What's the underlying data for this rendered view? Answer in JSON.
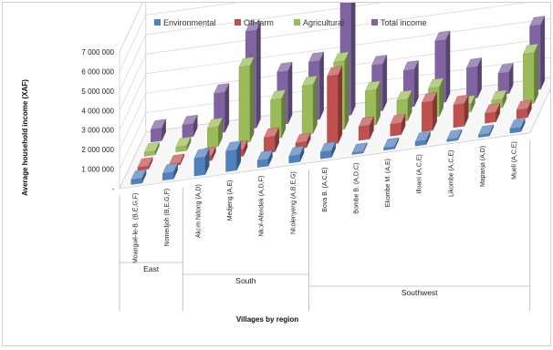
{
  "chart_data": {
    "type": "bar",
    "subtype": "3d-clustered-column",
    "title": "",
    "ylabel": "Average household income (XAF)",
    "xlabel": "Villages by region",
    "ylim": [
      0,
      7000000
    ],
    "yticks": [
      "7 000 000",
      "6 000 000",
      "5 000 000",
      "4 000 000",
      "3 000 000",
      "2 000 000",
      "1 000 000",
      "-"
    ],
    "ytick_values": [
      7000000,
      6000000,
      5000000,
      4000000,
      3000000,
      2000000,
      1000000,
      0
    ],
    "legend_position": "top",
    "grid": true,
    "categories": [
      "Moangué-le-B. (B,E,G,F)",
      "Nomedjoh (B,E,G,F)",
      "Akom Ndong (A,D)",
      "Medjeng (A,E)",
      "Nkol-Afendek (A,D,F)",
      "Nkolenyeng (A,B,E,G)",
      "Bova B. (A,C,E)",
      "Bombe B. (A,D,C)",
      "Ekombe M. (A,E)",
      "Illoani (A,C,E)",
      "Likombe (A,C,E)",
      "Mapanja (A,D)",
      "Mueli (A,C,E)"
    ],
    "regions": [
      {
        "name": "East",
        "start": 0,
        "end": 1
      },
      {
        "name": "South",
        "start": 2,
        "end": 5
      },
      {
        "name": "Southwest",
        "start": 6,
        "end": 12
      }
    ],
    "series": [
      {
        "name": "Environmental",
        "color": "#4F81BD",
        "values": [
          250000,
          350000,
          900000,
          1050000,
          350000,
          350000,
          350000,
          80000,
          120000,
          220000,
          100000,
          120000,
          220000
        ]
      },
      {
        "name": "Off-farm",
        "color": "#C0504D",
        "values": [
          150000,
          100000,
          250000,
          350000,
          800000,
          300000,
          3500000,
          700000,
          600000,
          1500000,
          1150000,
          500000,
          450000
        ]
      },
      {
        "name": "Agricultural",
        "color": "#9BBB59",
        "values": [
          200000,
          250000,
          1000000,
          3900000,
          2000000,
          2500000,
          3500000,
          1800000,
          1100000,
          1500000,
          400000,
          450000,
          2600000
        ]
      },
      {
        "name": "Total income",
        "color": "#8064A2",
        "values": [
          650000,
          650000,
          2050000,
          5000000,
          2700000,
          3000000,
          7000000,
          2400000,
          1900000,
          3200000,
          1600000,
          1100000,
          3300000
        ]
      }
    ]
  }
}
